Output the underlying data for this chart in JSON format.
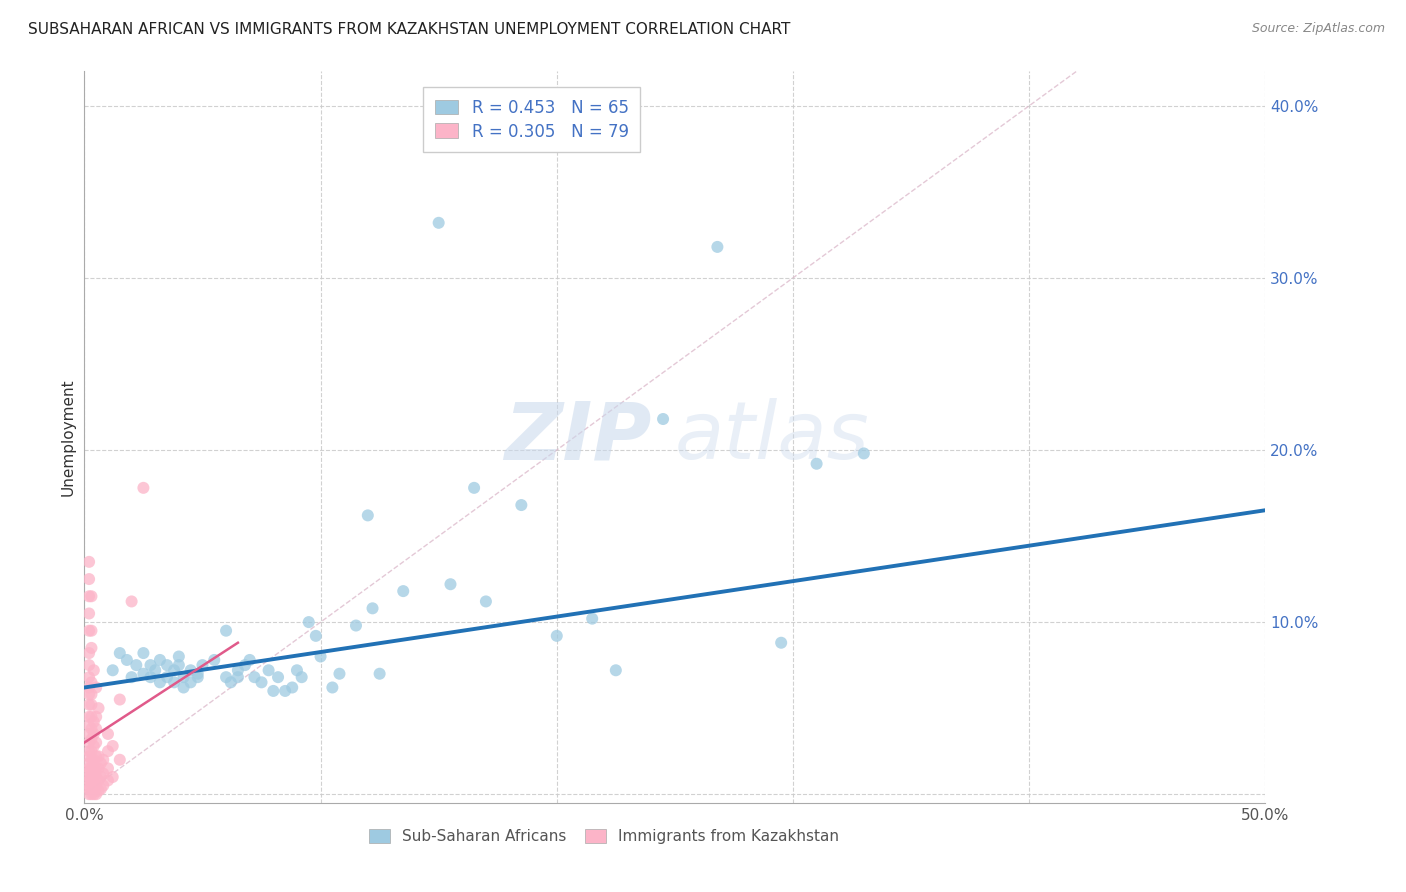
{
  "title": "SUBSAHARAN AFRICAN VS IMMIGRANTS FROM KAZAKHSTAN UNEMPLOYMENT CORRELATION CHART",
  "source": "Source: ZipAtlas.com",
  "ylabel": "Unemployment",
  "xlim": [
    0.0,
    0.5
  ],
  "ylim": [
    -0.005,
    0.42
  ],
  "xticks": [
    0.0,
    0.1,
    0.2,
    0.3,
    0.4,
    0.5
  ],
  "xticklabels_ends": [
    "0.0%",
    "50.0%"
  ],
  "yticks": [
    0.0,
    0.1,
    0.2,
    0.3,
    0.4
  ],
  "yticklabels": [
    "",
    "10.0%",
    "20.0%",
    "30.0%",
    "40.0%"
  ],
  "legend_r1": "R = 0.453",
  "legend_n1": "N = 65",
  "legend_r2": "R = 0.305",
  "legend_n2": "N = 79",
  "color_blue": "#9ecae1",
  "color_pink": "#fcb4c8",
  "trendline_blue_color": "#2171b5",
  "trendline_pink_color": "#e05a8a",
  "diagonal_color": "#d0d0d0",
  "watermark_zip": "ZIP",
  "watermark_atlas": "atlas",
  "blue_scatter": [
    [
      0.012,
      0.072
    ],
    [
      0.015,
      0.082
    ],
    [
      0.018,
      0.078
    ],
    [
      0.02,
      0.068
    ],
    [
      0.022,
      0.075
    ],
    [
      0.025,
      0.07
    ],
    [
      0.025,
      0.082
    ],
    [
      0.028,
      0.068
    ],
    [
      0.028,
      0.075
    ],
    [
      0.03,
      0.072
    ],
    [
      0.032,
      0.078
    ],
    [
      0.032,
      0.065
    ],
    [
      0.035,
      0.075
    ],
    [
      0.035,
      0.068
    ],
    [
      0.038,
      0.065
    ],
    [
      0.038,
      0.072
    ],
    [
      0.04,
      0.08
    ],
    [
      0.04,
      0.075
    ],
    [
      0.042,
      0.068
    ],
    [
      0.042,
      0.062
    ],
    [
      0.045,
      0.072
    ],
    [
      0.045,
      0.065
    ],
    [
      0.048,
      0.07
    ],
    [
      0.048,
      0.068
    ],
    [
      0.05,
      0.075
    ],
    [
      0.055,
      0.078
    ],
    [
      0.06,
      0.095
    ],
    [
      0.06,
      0.068
    ],
    [
      0.062,
      0.065
    ],
    [
      0.065,
      0.072
    ],
    [
      0.065,
      0.068
    ],
    [
      0.068,
      0.075
    ],
    [
      0.07,
      0.078
    ],
    [
      0.072,
      0.068
    ],
    [
      0.075,
      0.065
    ],
    [
      0.078,
      0.072
    ],
    [
      0.08,
      0.06
    ],
    [
      0.082,
      0.068
    ],
    [
      0.085,
      0.06
    ],
    [
      0.088,
      0.062
    ],
    [
      0.09,
      0.072
    ],
    [
      0.092,
      0.068
    ],
    [
      0.095,
      0.1
    ],
    [
      0.098,
      0.092
    ],
    [
      0.1,
      0.08
    ],
    [
      0.105,
      0.062
    ],
    [
      0.108,
      0.07
    ],
    [
      0.115,
      0.098
    ],
    [
      0.12,
      0.162
    ],
    [
      0.122,
      0.108
    ],
    [
      0.125,
      0.07
    ],
    [
      0.135,
      0.118
    ],
    [
      0.15,
      0.332
    ],
    [
      0.155,
      0.122
    ],
    [
      0.165,
      0.178
    ],
    [
      0.17,
      0.112
    ],
    [
      0.185,
      0.168
    ],
    [
      0.2,
      0.092
    ],
    [
      0.215,
      0.102
    ],
    [
      0.225,
      0.072
    ],
    [
      0.245,
      0.218
    ],
    [
      0.268,
      0.318
    ],
    [
      0.295,
      0.088
    ],
    [
      0.31,
      0.192
    ],
    [
      0.33,
      0.198
    ]
  ],
  "pink_scatter": [
    [
      0.002,
      0.0
    ],
    [
      0.002,
      0.003
    ],
    [
      0.002,
      0.005
    ],
    [
      0.002,
      0.008
    ],
    [
      0.002,
      0.01
    ],
    [
      0.002,
      0.013
    ],
    [
      0.002,
      0.015
    ],
    [
      0.002,
      0.018
    ],
    [
      0.002,
      0.022
    ],
    [
      0.002,
      0.025
    ],
    [
      0.002,
      0.03
    ],
    [
      0.002,
      0.035
    ],
    [
      0.002,
      0.04
    ],
    [
      0.002,
      0.045
    ],
    [
      0.002,
      0.052
    ],
    [
      0.002,
      0.058
    ],
    [
      0.002,
      0.062
    ],
    [
      0.002,
      0.068
    ],
    [
      0.002,
      0.075
    ],
    [
      0.002,
      0.082
    ],
    [
      0.003,
      0.0
    ],
    [
      0.003,
      0.005
    ],
    [
      0.003,
      0.01
    ],
    [
      0.003,
      0.015
    ],
    [
      0.003,
      0.02
    ],
    [
      0.003,
      0.025
    ],
    [
      0.003,
      0.032
    ],
    [
      0.003,
      0.038
    ],
    [
      0.003,
      0.045
    ],
    [
      0.003,
      0.052
    ],
    [
      0.003,
      0.058
    ],
    [
      0.003,
      0.065
    ],
    [
      0.004,
      0.0
    ],
    [
      0.004,
      0.005
    ],
    [
      0.004,
      0.01
    ],
    [
      0.004,
      0.015
    ],
    [
      0.004,
      0.02
    ],
    [
      0.004,
      0.028
    ],
    [
      0.004,
      0.035
    ],
    [
      0.004,
      0.042
    ],
    [
      0.005,
      0.0
    ],
    [
      0.005,
      0.005
    ],
    [
      0.005,
      0.01
    ],
    [
      0.005,
      0.015
    ],
    [
      0.005,
      0.022
    ],
    [
      0.005,
      0.03
    ],
    [
      0.005,
      0.038
    ],
    [
      0.005,
      0.045
    ],
    [
      0.006,
      0.002
    ],
    [
      0.006,
      0.008
    ],
    [
      0.006,
      0.015
    ],
    [
      0.006,
      0.022
    ],
    [
      0.007,
      0.003
    ],
    [
      0.007,
      0.01
    ],
    [
      0.007,
      0.018
    ],
    [
      0.008,
      0.005
    ],
    [
      0.008,
      0.012
    ],
    [
      0.008,
      0.02
    ],
    [
      0.01,
      0.008
    ],
    [
      0.01,
      0.015
    ],
    [
      0.01,
      0.025
    ],
    [
      0.012,
      0.01
    ],
    [
      0.015,
      0.055
    ],
    [
      0.002,
      0.115
    ],
    [
      0.002,
      0.135
    ],
    [
      0.003,
      0.115
    ],
    [
      0.003,
      0.095
    ],
    [
      0.002,
      0.095
    ],
    [
      0.002,
      0.105
    ],
    [
      0.002,
      0.125
    ],
    [
      0.005,
      0.062
    ],
    [
      0.02,
      0.112
    ],
    [
      0.003,
      0.085
    ],
    [
      0.004,
      0.072
    ],
    [
      0.006,
      0.05
    ],
    [
      0.01,
      0.035
    ],
    [
      0.012,
      0.028
    ],
    [
      0.015,
      0.02
    ],
    [
      0.025,
      0.178
    ]
  ],
  "blue_trend_x": [
    0.0,
    0.5
  ],
  "blue_trend_y": [
    0.062,
    0.165
  ],
  "pink_trend_x": [
    0.0,
    0.065
  ],
  "pink_trend_y": [
    0.03,
    0.088
  ]
}
